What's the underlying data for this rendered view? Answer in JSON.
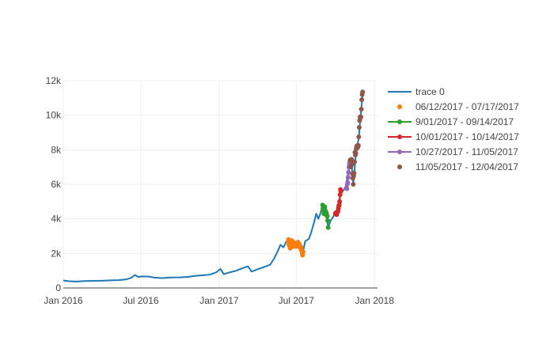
{
  "chart_data": {
    "type": "line",
    "title": "",
    "xlabel": "",
    "ylabel": "",
    "xlim": [
      "2016-01-01",
      "2018-01-08"
    ],
    "ylim": [
      0,
      12000
    ],
    "grid": true,
    "legend_position": "right",
    "x_ticks": [
      {
        "value": "2016-01-01",
        "label": "Jan 2016"
      },
      {
        "value": "2016-07-01",
        "label": "Jul 2016"
      },
      {
        "value": "2017-01-01",
        "label": "Jan 2017"
      },
      {
        "value": "2017-07-01",
        "label": "Jul 2017"
      },
      {
        "value": "2018-01-01",
        "label": "Jan 2018"
      }
    ],
    "y_ticks": [
      {
        "value": 0,
        "label": "0"
      },
      {
        "value": 2000,
        "label": "2k"
      },
      {
        "value": 4000,
        "label": "4k"
      },
      {
        "value": 6000,
        "label": "6k"
      },
      {
        "value": 8000,
        "label": "8k"
      },
      {
        "value": 10000,
        "label": "10k"
      },
      {
        "value": 12000,
        "label": "12k"
      }
    ],
    "series": [
      {
        "name": "trace 0",
        "mode": "lines",
        "color": "#1f77b4",
        "points": [
          [
            "2016-01-01",
            430
          ],
          [
            "2016-01-15",
            390
          ],
          [
            "2016-02-01",
            370
          ],
          [
            "2016-02-20",
            400
          ],
          [
            "2016-03-10",
            415
          ],
          [
            "2016-04-01",
            420
          ],
          [
            "2016-04-20",
            440
          ],
          [
            "2016-05-10",
            455
          ],
          [
            "2016-05-28",
            500
          ],
          [
            "2016-06-08",
            580
          ],
          [
            "2016-06-17",
            750
          ],
          [
            "2016-06-25",
            640
          ],
          [
            "2016-07-05",
            670
          ],
          [
            "2016-07-20",
            660
          ],
          [
            "2016-08-01",
            600
          ],
          [
            "2016-08-20",
            575
          ],
          [
            "2016-09-10",
            605
          ],
          [
            "2016-10-01",
            615
          ],
          [
            "2016-10-20",
            640
          ],
          [
            "2016-11-05",
            700
          ],
          [
            "2016-11-25",
            740
          ],
          [
            "2016-12-10",
            770
          ],
          [
            "2016-12-25",
            900
          ],
          [
            "2017-01-04",
            1100
          ],
          [
            "2017-01-12",
            800
          ],
          [
            "2017-01-25",
            900
          ],
          [
            "2017-02-10",
            1000
          ],
          [
            "2017-02-25",
            1150
          ],
          [
            "2017-03-10",
            1250
          ],
          [
            "2017-03-18",
            950
          ],
          [
            "2017-04-01",
            1080
          ],
          [
            "2017-04-15",
            1200
          ],
          [
            "2017-05-01",
            1350
          ],
          [
            "2017-05-10",
            1700
          ],
          [
            "2017-05-20",
            2200
          ],
          [
            "2017-05-25",
            2500
          ],
          [
            "2017-06-01",
            2350
          ],
          [
            "2017-06-10",
            2800
          ],
          [
            "2017-06-20",
            2650
          ],
          [
            "2017-07-01",
            2500
          ],
          [
            "2017-07-10",
            2350
          ],
          [
            "2017-07-16",
            1950
          ],
          [
            "2017-07-22",
            2700
          ],
          [
            "2017-07-31",
            2850
          ],
          [
            "2017-08-05",
            3200
          ],
          [
            "2017-08-12",
            3800
          ],
          [
            "2017-08-17",
            4300
          ],
          [
            "2017-08-22",
            4000
          ],
          [
            "2017-08-28",
            4400
          ],
          [
            "2017-09-01",
            4800
          ],
          [
            "2017-09-07",
            4600
          ],
          [
            "2017-09-14",
            3500
          ],
          [
            "2017-09-20",
            3900
          ],
          [
            "2017-09-28",
            4200
          ],
          [
            "2017-10-05",
            4300
          ],
          [
            "2017-10-12",
            5400
          ],
          [
            "2017-10-18",
            5600
          ],
          [
            "2017-10-25",
            5800
          ],
          [
            "2017-11-02",
            7000
          ],
          [
            "2017-11-08",
            7300
          ],
          [
            "2017-11-12",
            6000
          ],
          [
            "2017-11-18",
            7700
          ],
          [
            "2017-11-25",
            8700
          ],
          [
            "2017-11-29",
            9900
          ],
          [
            "2017-12-04",
            11200
          ]
        ]
      },
      {
        "name": "06/12/2017 - 07/17/2017",
        "mode": "markers",
        "color": "#ff7f0e",
        "points": [
          [
            "2017-06-12",
            2700
          ],
          [
            "2017-06-13",
            2800
          ],
          [
            "2017-06-14",
            2500
          ],
          [
            "2017-06-15",
            2450
          ],
          [
            "2017-06-16",
            2550
          ],
          [
            "2017-06-17",
            2300
          ],
          [
            "2017-06-18",
            2650
          ],
          [
            "2017-06-19",
            2700
          ],
          [
            "2017-06-20",
            2750
          ],
          [
            "2017-06-21",
            2600
          ],
          [
            "2017-06-22",
            2700
          ],
          [
            "2017-06-23",
            2550
          ],
          [
            "2017-06-24",
            2500
          ],
          [
            "2017-06-25",
            2400
          ],
          [
            "2017-06-26",
            2450
          ],
          [
            "2017-06-27",
            2550
          ],
          [
            "2017-06-28",
            2600
          ],
          [
            "2017-06-29",
            2500
          ],
          [
            "2017-06-30",
            2450
          ],
          [
            "2017-07-01",
            2400
          ],
          [
            "2017-07-02",
            2500
          ],
          [
            "2017-07-03",
            2600
          ],
          [
            "2017-07-04",
            2550
          ],
          [
            "2017-07-05",
            2650
          ],
          [
            "2017-07-06",
            2600
          ],
          [
            "2017-07-07",
            2500
          ],
          [
            "2017-07-08",
            2550
          ],
          [
            "2017-07-09",
            2500
          ],
          [
            "2017-07-10",
            2400
          ],
          [
            "2017-07-11",
            2300
          ],
          [
            "2017-07-12",
            2250
          ],
          [
            "2017-07-13",
            2350
          ],
          [
            "2017-07-14",
            2150
          ],
          [
            "2017-07-15",
            2000
          ],
          [
            "2017-07-16",
            1900
          ],
          [
            "2017-07-17",
            2100
          ]
        ]
      },
      {
        "name": "9/01/2017 - 09/14/2017",
        "mode": "lines+markers",
        "color": "#2ca02c",
        "points": [
          [
            "2017-09-01",
            4800
          ],
          [
            "2017-09-02",
            4600
          ],
          [
            "2017-09-03",
            4500
          ],
          [
            "2017-09-04",
            4300
          ],
          [
            "2017-09-05",
            4550
          ],
          [
            "2017-09-06",
            4700
          ],
          [
            "2017-09-07",
            4500
          ],
          [
            "2017-09-08",
            4300
          ],
          [
            "2017-09-09",
            4250
          ],
          [
            "2017-09-10",
            4350
          ],
          [
            "2017-09-11",
            4200
          ],
          [
            "2017-09-12",
            4150
          ],
          [
            "2017-09-13",
            3900
          ],
          [
            "2017-09-14",
            3500
          ]
        ]
      },
      {
        "name": "10/01/2017 - 10/14/2017",
        "mode": "lines+markers",
        "color": "#d62728",
        "points": [
          [
            "2017-10-01",
            4300
          ],
          [
            "2017-10-02",
            4350
          ],
          [
            "2017-10-03",
            4300
          ],
          [
            "2017-10-04",
            4250
          ],
          [
            "2017-10-05",
            4350
          ],
          [
            "2017-10-06",
            4400
          ],
          [
            "2017-10-07",
            4450
          ],
          [
            "2017-10-08",
            4600
          ],
          [
            "2017-10-09",
            4750
          ],
          [
            "2017-10-10",
            4800
          ],
          [
            "2017-10-11",
            5000
          ],
          [
            "2017-10-12",
            5400
          ],
          [
            "2017-10-13",
            5700
          ],
          [
            "2017-10-14",
            5600
          ]
        ]
      },
      {
        "name": "10/27/2017 - 11/05/2017",
        "mode": "lines+markers",
        "color": "#9467bd",
        "points": [
          [
            "2017-10-27",
            5800
          ],
          [
            "2017-10-28",
            5750
          ],
          [
            "2017-10-29",
            6000
          ],
          [
            "2017-10-30",
            6100
          ],
          [
            "2017-10-31",
            6400
          ],
          [
            "2017-11-01",
            6700
          ],
          [
            "2017-11-02",
            7000
          ],
          [
            "2017-11-03",
            7200
          ],
          [
            "2017-11-04",
            7300
          ],
          [
            "2017-11-05",
            7400
          ]
        ]
      },
      {
        "name": "11/05/2017 - 12/04/2017",
        "mode": "markers",
        "color": "#8c564b",
        "points": [
          [
            "2017-11-05",
            7400
          ],
          [
            "2017-11-06",
            7000
          ],
          [
            "2017-11-07",
            7100
          ],
          [
            "2017-11-08",
            7450
          ],
          [
            "2017-11-09",
            7150
          ],
          [
            "2017-11-10",
            6600
          ],
          [
            "2017-11-11",
            6350
          ],
          [
            "2017-11-12",
            6000
          ],
          [
            "2017-11-13",
            6500
          ],
          [
            "2017-11-14",
            6650
          ],
          [
            "2017-11-15",
            7300
          ],
          [
            "2017-11-16",
            7850
          ],
          [
            "2017-11-17",
            7700
          ],
          [
            "2017-11-18",
            7800
          ],
          [
            "2017-11-19",
            8050
          ],
          [
            "2017-11-20",
            8200
          ],
          [
            "2017-11-21",
            8100
          ],
          [
            "2017-11-22",
            8250
          ],
          [
            "2017-11-23",
            8150
          ],
          [
            "2017-11-24",
            8250
          ],
          [
            "2017-11-25",
            8750
          ],
          [
            "2017-11-26",
            9300
          ],
          [
            "2017-11-27",
            9700
          ],
          [
            "2017-11-28",
            9900
          ],
          [
            "2017-11-29",
            9850
          ],
          [
            "2017-11-30",
            9900
          ],
          [
            "2017-12-01",
            10350
          ],
          [
            "2017-12-02",
            10900
          ],
          [
            "2017-12-03",
            11200
          ],
          [
            "2017-12-04",
            11350
          ]
        ]
      }
    ]
  }
}
